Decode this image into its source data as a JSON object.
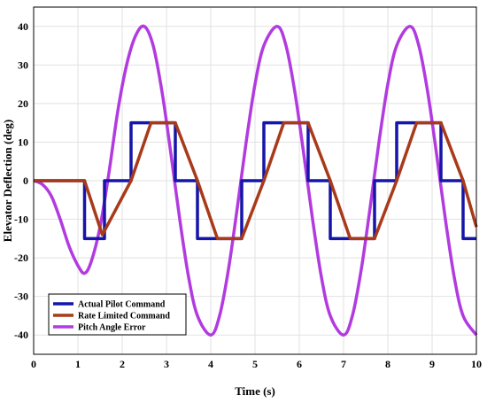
{
  "chart_data": {
    "type": "line",
    "title": "",
    "xlabel": "Time (s)",
    "ylabel": "Elevator Deflection (deg)",
    "xlim": [
      0,
      10
    ],
    "ylim": [
      -45,
      45
    ],
    "xticks": [
      "0",
      "1",
      "2",
      "3",
      "4",
      "5",
      "6",
      "7",
      "8",
      "9",
      "10"
    ],
    "yticks": [
      "-40",
      "-30",
      "-20",
      "-10",
      "0",
      "10",
      "20",
      "30",
      "40"
    ],
    "grid": true,
    "legend_position": "bottom-left",
    "series": [
      {
        "name": "Actual Pilot Command",
        "color": "#1515a8",
        "x": [
          0,
          1.15,
          1.15,
          1.6,
          1.6,
          2.2,
          2.2,
          3.2,
          3.2,
          3.7,
          3.7,
          4.7,
          4.7,
          5.2,
          5.2,
          6.2,
          6.2,
          6.7,
          6.7,
          7.7,
          7.7,
          8.2,
          8.2,
          9.2,
          9.2,
          9.7,
          9.7,
          10
        ],
        "y": [
          0,
          0,
          -15,
          -15,
          0,
          0,
          15,
          15,
          0,
          0,
          -15,
          -15,
          0,
          0,
          15,
          15,
          0,
          0,
          -15,
          -15,
          0,
          0,
          15,
          15,
          0,
          0,
          -15,
          -15
        ]
      },
      {
        "name": "Rate Limited Command",
        "color": "#a83a1a",
        "x": [
          0,
          1.15,
          1.55,
          1.6,
          2.2,
          2.65,
          3.2,
          3.7,
          4.15,
          4.7,
          5.2,
          5.65,
          6.2,
          6.7,
          7.15,
          7.7,
          8.2,
          8.65,
          9.2,
          9.7,
          10
        ],
        "y": [
          0,
          0,
          -14,
          -13,
          0,
          15,
          15,
          0,
          -15,
          -15,
          0,
          15,
          15,
          0,
          -15,
          -15,
          0,
          15,
          15,
          0,
          -12
        ]
      },
      {
        "name": "Pitch Angle Error",
        "color": "#b23be0",
        "x": [
          0,
          0.2,
          0.4,
          0.6,
          0.8,
          1.0,
          1.15,
          1.3,
          1.5,
          1.7,
          1.9,
          2.1,
          2.3,
          2.5,
          2.7,
          2.9,
          3.1,
          3.3,
          3.5,
          3.7,
          4.0,
          4.2,
          4.4,
          4.6,
          4.8,
          5.0,
          5.2,
          5.5,
          5.7,
          5.9,
          6.1,
          6.3,
          6.5,
          6.7,
          7.0,
          7.2,
          7.4,
          7.6,
          7.8,
          8.0,
          8.2,
          8.5,
          8.7,
          8.9,
          9.1,
          9.3,
          9.5,
          9.7,
          10.0
        ],
        "y": [
          0,
          -1,
          -4,
          -10,
          -17,
          -22,
          -24,
          -21,
          -12,
          2,
          18,
          30,
          37.5,
          40,
          35,
          23,
          7,
          -10,
          -25,
          -35,
          -40,
          -35,
          -23,
          -7,
          10,
          25,
          35,
          40,
          35,
          23,
          7,
          -10,
          -25,
          -35,
          -40,
          -35,
          -23,
          -7,
          10,
          25,
          35,
          40,
          35,
          23,
          7,
          -10,
          -25,
          -35,
          -40
        ]
      }
    ]
  }
}
